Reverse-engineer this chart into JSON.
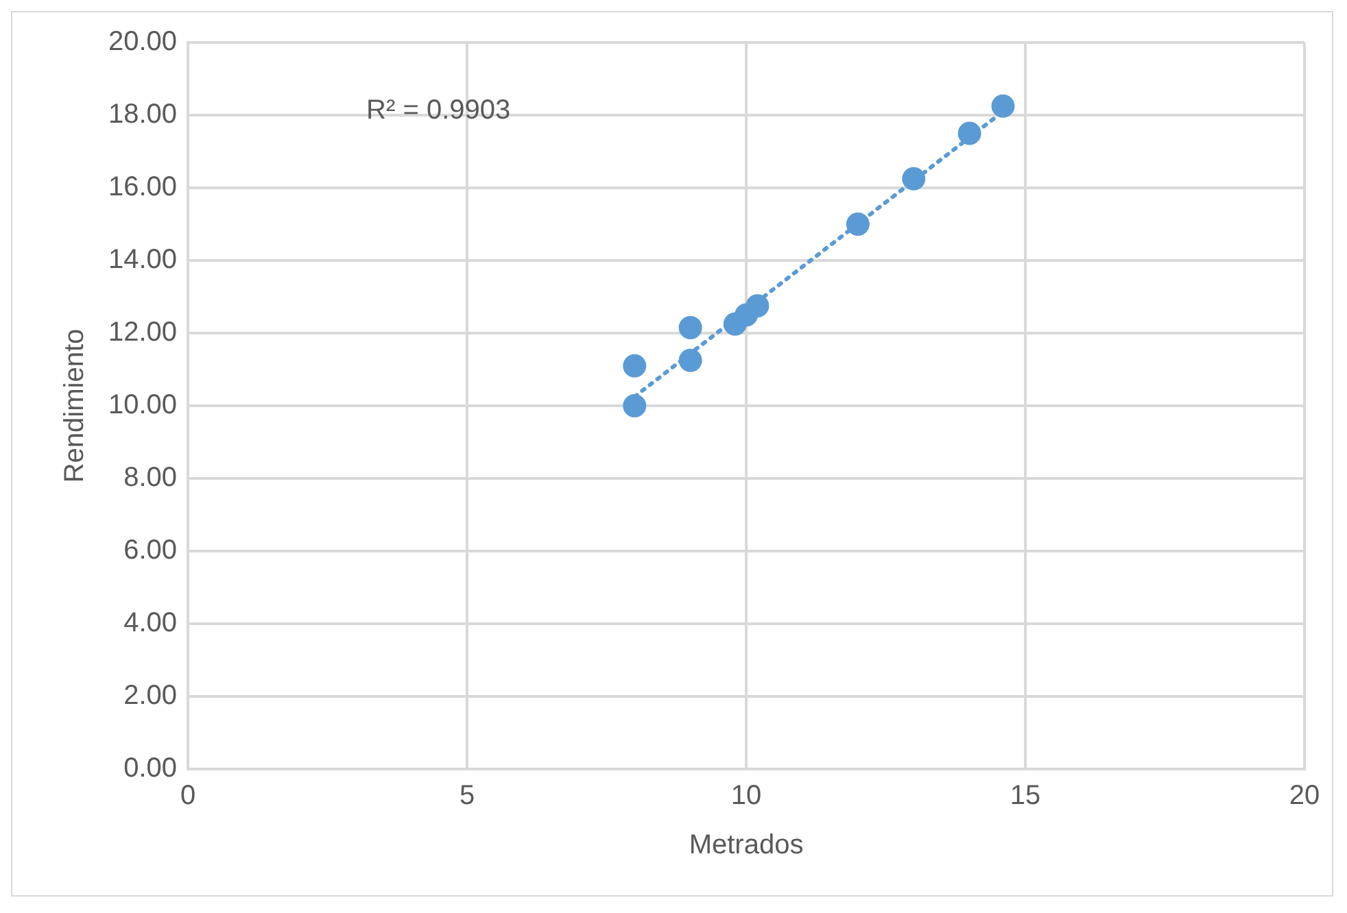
{
  "chart_data": {
    "type": "scatter",
    "xlabel": "Metrados",
    "ylabel": "Rendimiento",
    "annotations": [
      "R² = 0.9903"
    ],
    "xlim": [
      0,
      20
    ],
    "xticks": [
      0,
      5,
      10,
      15,
      20
    ],
    "ylim": [
      0,
      20
    ],
    "yticks": [
      {
        "value": 0,
        "label": "0.00"
      },
      {
        "value": 2,
        "label": "2.00"
      },
      {
        "value": 4,
        "label": "4.00"
      },
      {
        "value": 6,
        "label": "6.00"
      },
      {
        "value": 8,
        "label": "8.00"
      },
      {
        "value": 10,
        "label": "10.00"
      },
      {
        "value": 12,
        "label": "12.00"
      },
      {
        "value": 14,
        "label": "14.00"
      },
      {
        "value": 16,
        "label": "16.00"
      },
      {
        "value": 18,
        "label": "18.00"
      },
      {
        "value": 20,
        "label": "20.00"
      }
    ],
    "grid": true,
    "legend": false,
    "marker": "circle",
    "series": [
      {
        "color": "#5b9bd5",
        "x": [
          8,
          8,
          9,
          9,
          9.8,
          10,
          10.2,
          12,
          13,
          14,
          14.6
        ],
        "values": [
          10,
          11.1,
          11.25,
          12.15,
          12.25,
          12.5,
          12.75,
          15,
          16.25,
          17.5,
          18.25
        ]
      },
      {
        "type": "line",
        "color": "#5b9bd5",
        "line_style": "dotted",
        "marker": "none",
        "x": [
          8,
          14.6
        ],
        "values": [
          10.25,
          18.1
        ]
      }
    ]
  }
}
